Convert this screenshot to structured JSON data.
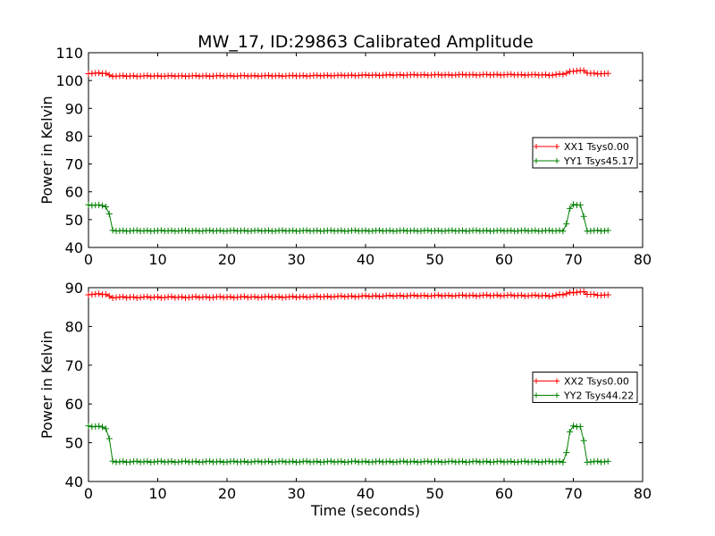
{
  "chart_data": [
    {
      "type": "line",
      "title": "MW_17, ID:29863 Calibrated Amplitude",
      "xlabel": "",
      "ylabel": "Power in Kelvin",
      "xlim": [
        0,
        80
      ],
      "ylim": [
        40,
        110
      ],
      "xticks": [
        0,
        10,
        20,
        30,
        40,
        50,
        60,
        70,
        80
      ],
      "yticks": [
        40,
        50,
        60,
        70,
        80,
        90,
        100,
        110
      ],
      "legend_position": "center-right",
      "series": [
        {
          "name": "XX1 Tsys0.00",
          "color": "#ff0000",
          "marker": "+",
          "base": 102.0,
          "profile": [
            [
              0,
              102.6
            ],
            [
              2.5,
              102.6
            ],
            [
              3.2,
              101.6
            ],
            [
              30,
              101.7
            ],
            [
              45,
              102.0
            ],
            [
              60,
              102.1
            ],
            [
              67,
              102.0
            ],
            [
              68.8,
              102.4
            ],
            [
              69.7,
              103.4
            ],
            [
              71.4,
              103.6
            ],
            [
              72.1,
              102.6
            ],
            [
              75,
              102.4
            ]
          ]
        },
        {
          "name": "YY1 Tsys45.17",
          "color": "#008000",
          "marker": "+",
          "base": 46.0,
          "profile": [
            [
              0,
              55.2
            ],
            [
              2.4,
              55.2
            ],
            [
              3.0,
              52.0
            ],
            [
              3.2,
              46.0
            ],
            [
              68.8,
              46.0
            ],
            [
              69.4,
              53.5
            ],
            [
              69.8,
              55.3
            ],
            [
              71.1,
              55.3
            ],
            [
              71.6,
              50.0
            ],
            [
              72.0,
              46.0
            ],
            [
              75,
              46.0
            ]
          ]
        }
      ]
    },
    {
      "type": "line",
      "title": "",
      "xlabel": "Time (seconds)",
      "ylabel": "Power in Kelvin",
      "xlim": [
        0,
        80
      ],
      "ylim": [
        40,
        90
      ],
      "xticks": [
        0,
        10,
        20,
        30,
        40,
        50,
        60,
        70,
        80
      ],
      "yticks": [
        40,
        50,
        60,
        70,
        80,
        90
      ],
      "legend_position": "center-right",
      "series": [
        {
          "name": "XX2 Tsys0.00",
          "color": "#ff0000",
          "marker": "+",
          "base": 87.8,
          "profile": [
            [
              0,
              88.3
            ],
            [
              2.5,
              88.3
            ],
            [
              3.2,
              87.5
            ],
            [
              30,
              87.6
            ],
            [
              45,
              87.9
            ],
            [
              60,
              88.0
            ],
            [
              67,
              87.9
            ],
            [
              68.8,
              88.3
            ],
            [
              69.7,
              88.8
            ],
            [
              71.4,
              88.9
            ],
            [
              72.1,
              88.3
            ],
            [
              75,
              88.0
            ]
          ]
        },
        {
          "name": "YY2 Tsys44.22",
          "color": "#008000",
          "marker": "+",
          "base": 45.1,
          "profile": [
            [
              0,
              54.2
            ],
            [
              2.4,
              54.2
            ],
            [
              3.0,
              51.0
            ],
            [
              3.2,
              45.1
            ],
            [
              68.8,
              45.1
            ],
            [
              69.4,
              52.3
            ],
            [
              69.8,
              54.2
            ],
            [
              71.1,
              54.2
            ],
            [
              71.6,
              49.5
            ],
            [
              72.0,
              45.1
            ],
            [
              75,
              45.1
            ]
          ]
        }
      ]
    }
  ]
}
